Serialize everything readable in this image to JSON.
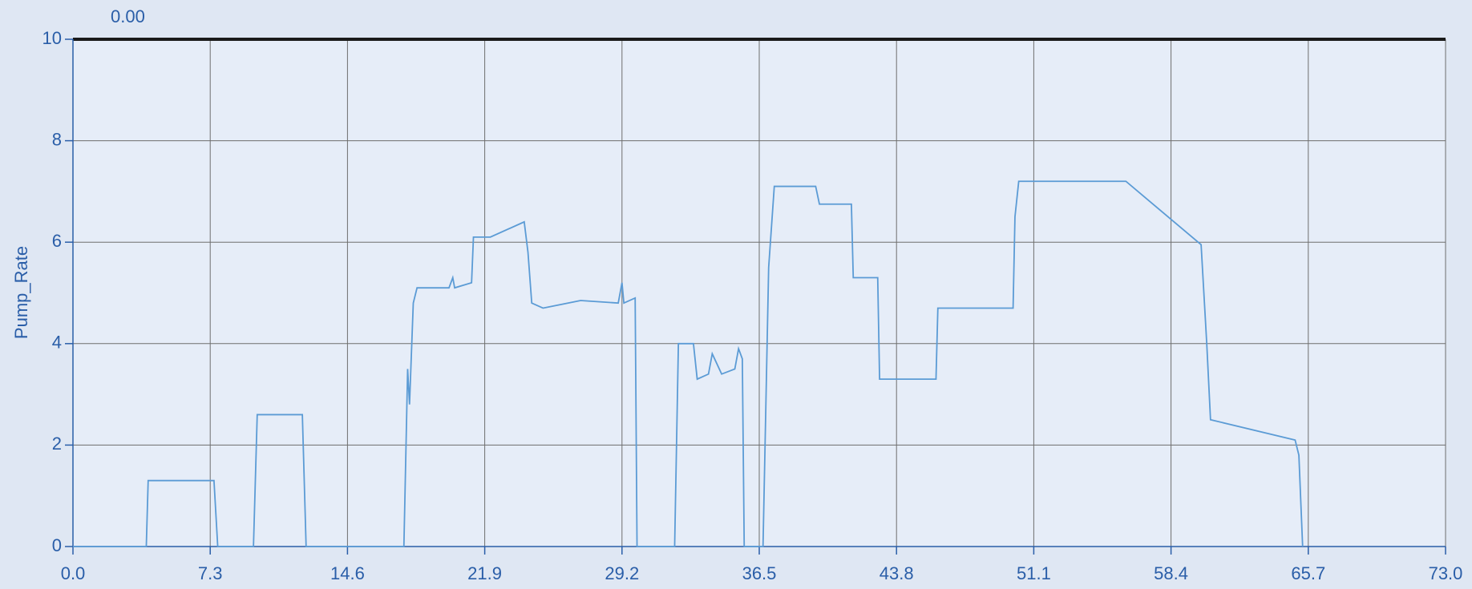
{
  "chart_data": {
    "type": "line",
    "annotation": "0.00",
    "y_label": "Pump_Rate",
    "x": [
      0,
      3.9,
      4.0,
      7.5,
      7.7,
      9.6,
      9.8,
      12.2,
      12.4,
      17.6,
      17.8,
      17.9,
      18.1,
      18.3,
      20.0,
      20.2,
      20.3,
      21.2,
      21.3,
      22.2,
      24.0,
      24.2,
      24.4,
      25.0,
      27.0,
      29.0,
      29.2,
      29.3,
      29.9,
      30.0,
      32.0,
      32.2,
      33.0,
      33.2,
      33.8,
      34.0,
      34.5,
      35.2,
      35.4,
      35.6,
      35.7,
      36.7,
      37.0,
      37.3,
      39.5,
      39.7,
      41.4,
      41.5,
      42.8,
      42.9,
      45.9,
      46.0,
      50.0,
      50.1,
      50.3,
      56.0,
      60.0,
      60.3,
      60.5,
      65.0,
      65.2,
      65.4
    ],
    "values": [
      0,
      0,
      1.3,
      1.3,
      0,
      0,
      2.6,
      2.6,
      0,
      0,
      3.5,
      2.8,
      4.8,
      5.1,
      5.1,
      5.3,
      5.1,
      5.2,
      6.1,
      6.1,
      6.4,
      5.8,
      4.8,
      4.7,
      4.85,
      4.8,
      5.2,
      4.8,
      4.9,
      0,
      0,
      4.0,
      4.0,
      3.3,
      3.4,
      3.8,
      3.4,
      3.5,
      3.9,
      3.7,
      0,
      0,
      5.5,
      7.1,
      7.1,
      6.75,
      6.75,
      5.3,
      5.3,
      3.3,
      3.3,
      4.7,
      4.7,
      6.5,
      7.2,
      7.2,
      5.95,
      4.0,
      2.5,
      2.1,
      1.8,
      0
    ],
    "color": "#5b9bd5",
    "xlim": [
      0,
      73
    ],
    "xticks": [
      {
        "value": 0,
        "label": "0.0"
      },
      7.3,
      14.6,
      21.9,
      29.2,
      36.5,
      43.8,
      51.1,
      58.4,
      65.7,
      {
        "value": 73,
        "label": "73.0"
      }
    ],
    "ylim": [
      0,
      10
    ],
    "yticks": [
      0,
      2,
      4,
      6,
      8,
      10
    ],
    "grid": true
  }
}
